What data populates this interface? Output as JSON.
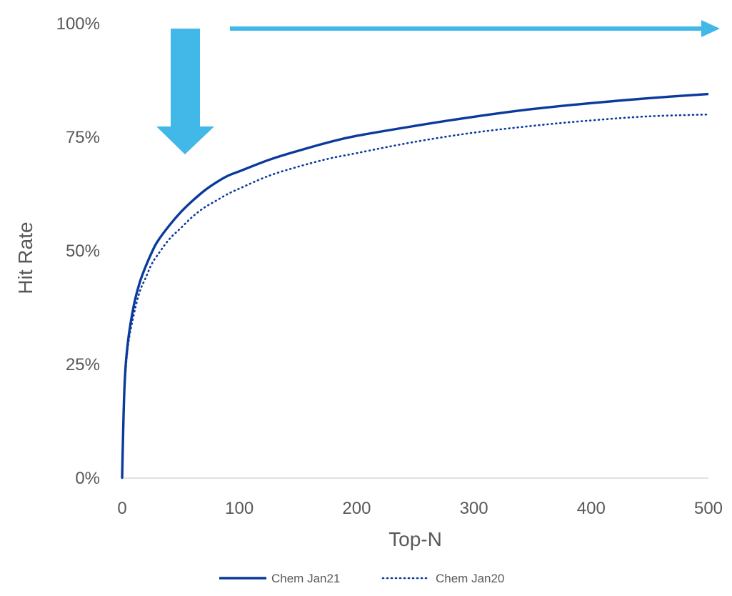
{
  "chart_data": {
    "type": "line",
    "title": "",
    "xlabel": "Top-N",
    "ylabel": "Hit Rate",
    "xlim": [
      0,
      500
    ],
    "ylim": [
      0,
      1
    ],
    "x_ticks": [
      0,
      100,
      200,
      300,
      400,
      500
    ],
    "x_tick_labels": [
      "0",
      "100",
      "200",
      "300",
      "400",
      "500"
    ],
    "y_ticks": [
      0,
      0.25,
      0.5,
      0.75,
      1.0
    ],
    "y_tick_labels": [
      "0%",
      "25%",
      "50%",
      "75%",
      "100%"
    ],
    "grid": false,
    "legend_position": "bottom",
    "series": [
      {
        "name": "Chem Jan21",
        "style": "solid",
        "color": "#0a3a9c",
        "x": [
          0,
          2,
          5,
          10,
          15,
          20,
          25,
          30,
          40,
          50,
          60,
          70,
          80,
          90,
          100,
          125,
          150,
          175,
          200,
          250,
          300,
          350,
          400,
          450,
          500
        ],
        "y": [
          0,
          0.2,
          0.3,
          0.38,
          0.43,
          0.465,
          0.495,
          0.52,
          0.555,
          0.585,
          0.61,
          0.632,
          0.65,
          0.665,
          0.675,
          0.7,
          0.72,
          0.738,
          0.753,
          0.775,
          0.795,
          0.812,
          0.825,
          0.836,
          0.845
        ]
      },
      {
        "name": "Chem Jan20",
        "style": "dotted",
        "color": "#0a3a9c",
        "x": [
          0,
          2,
          5,
          10,
          15,
          20,
          25,
          30,
          40,
          50,
          60,
          70,
          80,
          90,
          100,
          125,
          150,
          175,
          200,
          250,
          300,
          350,
          400,
          450,
          500
        ],
        "y": [
          0,
          0.19,
          0.29,
          0.36,
          0.41,
          0.44,
          0.47,
          0.49,
          0.525,
          0.55,
          0.575,
          0.595,
          0.61,
          0.625,
          0.637,
          0.665,
          0.685,
          0.702,
          0.715,
          0.74,
          0.76,
          0.775,
          0.787,
          0.796,
          0.8
        ]
      }
    ],
    "annotations": [
      {
        "kind": "arrow",
        "direction": "down",
        "color": "#41b8e8"
      },
      {
        "kind": "arrow",
        "direction": "right",
        "color": "#41b8e8"
      }
    ]
  }
}
